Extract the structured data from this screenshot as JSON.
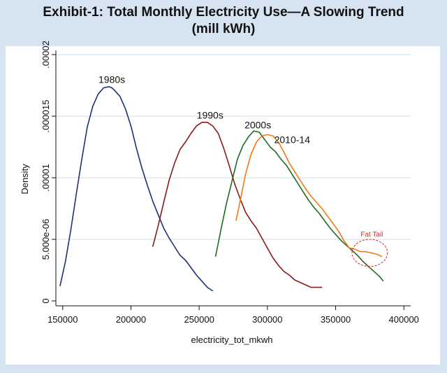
{
  "chart_data": {
    "type": "line",
    "title": "Exhibit-1: Total Monthly Electricity Use—A Slowing Trend",
    "subtitle": "(mill kWh)",
    "xlabel": "electricity_tot_mkwh",
    "ylabel": "Density",
    "xlim": [
      145000,
      405000
    ],
    "ylim": [
      -4e-07,
      2e-05
    ],
    "x_ticks": [
      150000,
      200000,
      250000,
      300000,
      350000,
      400000
    ],
    "x_tick_labels": [
      "150000",
      "200000",
      "250000",
      "300000",
      "350000",
      "400000"
    ],
    "y_ticks": [
      0,
      5e-06,
      1e-05,
      1.5e-05,
      2e-05
    ],
    "y_tick_labels": [
      "0",
      "5.000e-06",
      ".00001",
      ".000015",
      ".00002"
    ],
    "grid": true,
    "series": [
      {
        "name": "1980s",
        "color": "#1f2f78",
        "label_at": [
          186000,
          1.77e-05
        ],
        "x": [
          148000,
          152000,
          156000,
          160000,
          164000,
          168000,
          172000,
          176000,
          180000,
          184000,
          186000,
          188000,
          192000,
          196000,
          200000,
          204000,
          208000,
          212000,
          216000,
          220000,
          224000,
          228000,
          232000,
          236000,
          240000,
          244000,
          248000,
          252000,
          256000,
          260000
        ],
        "y": [
          1.2e-06,
          3.2e-06,
          5.8e-06,
          8.7e-06,
          1.15e-05,
          1.41e-05,
          1.58e-05,
          1.68e-05,
          1.73e-05,
          1.74e-05,
          1.73e-05,
          1.71e-05,
          1.66e-05,
          1.56e-05,
          1.42e-05,
          1.24e-05,
          1.08e-05,
          9.4e-06,
          8.1e-06,
          7e-06,
          5.9e-06,
          5.1e-06,
          4.4e-06,
          3.7e-06,
          3.3e-06,
          2.7e-06,
          2.1e-06,
          1.6e-06,
          1.1e-06,
          8e-07
        ]
      },
      {
        "name": "1990s",
        "color": "#8b1a1a",
        "label_at": [
          258000,
          1.48e-05
        ],
        "x": [
          216000,
          220000,
          224000,
          228000,
          232000,
          236000,
          240000,
          244000,
          248000,
          252000,
          256000,
          260000,
          264000,
          268000,
          272000,
          276000,
          280000,
          284000,
          288000,
          292000,
          296000,
          300000,
          304000,
          308000,
          312000,
          316000,
          320000,
          324000,
          328000,
          332000,
          336000,
          340000
        ],
        "y": [
          4.4e-06,
          6.1e-06,
          8e-06,
          9.8e-06,
          1.12e-05,
          1.23e-05,
          1.29e-05,
          1.36e-05,
          1.42e-05,
          1.45e-05,
          1.45e-05,
          1.42e-05,
          1.36e-05,
          1.24e-05,
          1.1e-05,
          9.5e-06,
          8.3e-06,
          7.2e-06,
          6.5e-06,
          5.9e-06,
          5.1e-06,
          4.3e-06,
          3.5e-06,
          2.9e-06,
          2.4e-06,
          2.1e-06,
          1.7e-06,
          1.5e-06,
          1.3e-06,
          1.1e-06,
          1.1e-06,
          1.1e-06
        ]
      },
      {
        "name": "2000s",
        "color": "#1e6b1e",
        "label_at": [
          293000,
          1.4e-05
        ],
        "x": [
          262000,
          266000,
          270000,
          274000,
          278000,
          282000,
          286000,
          290000,
          294000,
          298000,
          302000,
          306000,
          310000,
          314000,
          318000,
          322000,
          326000,
          330000,
          334000,
          338000,
          342000,
          346000,
          350000,
          354000,
          358000,
          362000,
          366000,
          370000,
          374000,
          378000,
          382000,
          385000
        ],
        "y": [
          3.6e-06,
          5.8e-06,
          7.9e-06,
          9.7e-06,
          1.15e-05,
          1.26e-05,
          1.33e-05,
          1.38e-05,
          1.37e-05,
          1.31e-05,
          1.25e-05,
          1.21e-05,
          1.15e-05,
          1.1e-05,
          1.03e-05,
          9.6e-06,
          8.9e-06,
          8.2e-06,
          7.6e-06,
          7.1e-06,
          6.5e-06,
          5.9e-06,
          5.4e-06,
          4.9e-06,
          4.5e-06,
          4.1e-06,
          3.7e-06,
          3.2e-06,
          2.8e-06,
          2.4e-06,
          2e-06,
          1.6e-06
        ]
      },
      {
        "name": "2010-14",
        "color": "#f07a1a",
        "label_at": [
          305000,
          1.28e-05
        ],
        "x": [
          277000,
          280000,
          284000,
          288000,
          292000,
          296000,
          300000,
          304000,
          308000,
          312000,
          316000,
          320000,
          324000,
          328000,
          332000,
          336000,
          340000,
          344000,
          348000,
          352000,
          356000,
          360000,
          364000,
          368000,
          372000,
          376000,
          380000,
          384000
        ],
        "y": [
          6.5e-06,
          8.1e-06,
          1.03e-05,
          1.19e-05,
          1.29e-05,
          1.34e-05,
          1.35e-05,
          1.34e-05,
          1.29e-05,
          1.21e-05,
          1.12e-05,
          1.05e-05,
          9.8e-06,
          9.1e-06,
          8.5e-06,
          8e-06,
          7.5e-06,
          6.9e-06,
          6.3e-06,
          5.7e-06,
          4.9e-06,
          4.3e-06,
          4.2e-06,
          4e-06,
          4e-06,
          3.9e-06,
          3.8e-06,
          3.6e-06
        ]
      }
    ],
    "annotation": {
      "text": "Fat Tail",
      "color": "#e0241e",
      "center": [
        375000,
        3.9e-06
      ],
      "rx_data": 13000,
      "ry_data": 1.1e-06
    }
  }
}
